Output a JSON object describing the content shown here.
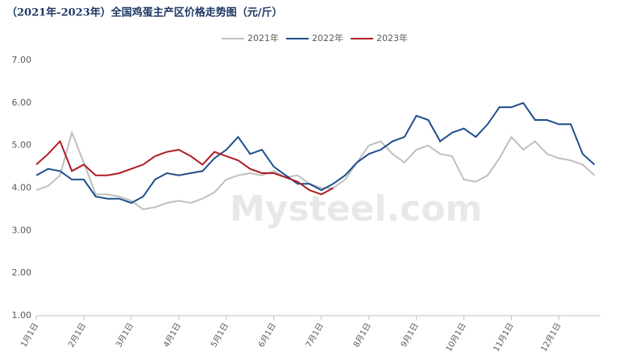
{
  "chart_data": {
    "type": "line",
    "title": "（2021年-2023年）全国鸡蛋主产区价格走势图（元/斤）",
    "watermark": "Mysteel.com",
    "categories": [
      "1月1日",
      null,
      null,
      null,
      "2月1日",
      null,
      null,
      null,
      "3月1日",
      null,
      null,
      null,
      "4月1日",
      null,
      null,
      null,
      "5月1日",
      null,
      null,
      null,
      "6月1日",
      null,
      null,
      null,
      "7月1日",
      null,
      null,
      null,
      "8月1日",
      null,
      null,
      null,
      "9月1日",
      null,
      null,
      null,
      "10月1日",
      null,
      null,
      null,
      "11月1日",
      null,
      null,
      null,
      "12月1日",
      null,
      null,
      null
    ],
    "series": [
      {
        "name": "2021年",
        "color": "#bfbfbf",
        "values": [
          3.95,
          4.05,
          4.3,
          5.3,
          4.6,
          3.85,
          3.85,
          3.8,
          3.7,
          3.5,
          3.55,
          3.65,
          3.7,
          3.65,
          3.75,
          3.9,
          4.2,
          4.3,
          4.35,
          4.3,
          4.4,
          4.25,
          4.3,
          4.1,
          4.0,
          4.0,
          4.2,
          4.6,
          5.0,
          5.1,
          4.8,
          4.6,
          4.9,
          5.0,
          4.8,
          4.75,
          4.2,
          4.15,
          4.3,
          4.7,
          5.2,
          4.9,
          5.1,
          4.8,
          4.7,
          4.65,
          4.55,
          4.3
        ]
      },
      {
        "name": "2022年",
        "color": "#1f4e8c",
        "values": [
          4.3,
          4.45,
          4.4,
          4.2,
          4.2,
          3.8,
          3.75,
          3.75,
          3.65,
          3.8,
          4.2,
          4.35,
          4.3,
          4.35,
          4.4,
          4.7,
          4.9,
          5.2,
          4.8,
          4.9,
          4.5,
          4.3,
          4.1,
          4.1,
          3.95,
          4.1,
          4.3,
          4.6,
          4.8,
          4.9,
          5.1,
          5.2,
          5.7,
          5.6,
          5.1,
          5.3,
          5.4,
          5.2,
          5.5,
          5.9,
          5.9,
          6.0,
          5.6,
          5.6,
          5.5,
          5.5,
          4.8,
          4.55
        ]
      },
      {
        "name": "2023年",
        "color": "#b01c24",
        "values": [
          4.55,
          4.8,
          5.1,
          4.4,
          4.55,
          4.3,
          4.3,
          4.35,
          4.45,
          4.55,
          4.75,
          4.85,
          4.9,
          4.75,
          4.55,
          4.85,
          4.75,
          4.65,
          4.45,
          4.35,
          4.35,
          4.25,
          4.15,
          3.95,
          3.85,
          4.0,
          null,
          null,
          null,
          null,
          null,
          null,
          null,
          null,
          null,
          null,
          null,
          null,
          null,
          null,
          null,
          null,
          null,
          null,
          null,
          null,
          null,
          null
        ]
      }
    ],
    "ylim": [
      1,
      7
    ],
    "yticks": [
      {
        "value": 1,
        "label": "1.00"
      },
      {
        "value": 2,
        "label": "2.00"
      },
      {
        "value": 3,
        "label": "3.00"
      },
      {
        "value": 4,
        "label": "4.00"
      },
      {
        "value": 5,
        "label": "5.00"
      },
      {
        "value": 6,
        "label": "6.00"
      },
      {
        "value": 7,
        "label": "7.00"
      }
    ],
    "legend": "top"
  }
}
